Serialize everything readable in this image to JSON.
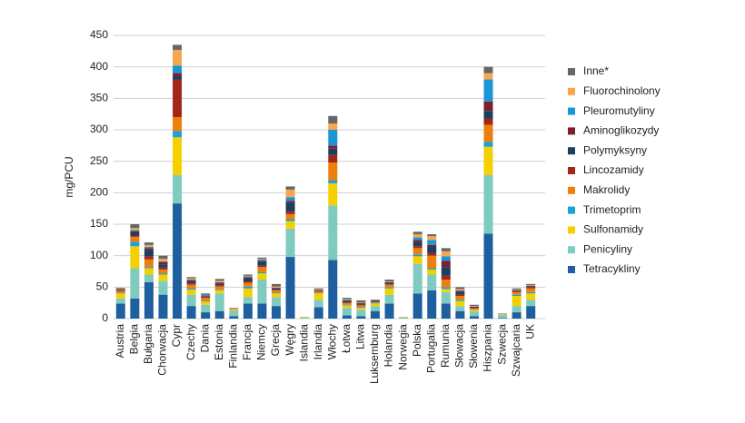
{
  "chart_data": {
    "type": "stacked_bar",
    "y_label": "mg/PCU",
    "categories": [
      "Austria",
      "Belgia",
      "Bułgaria",
      "Chorwacja",
      "Cypr",
      "Czechy",
      "Dania",
      "Estonia",
      "Finlandia",
      "Francja",
      "Niemcy",
      "Grecja",
      "Węgry",
      "Islandia",
      "Irlandia",
      "Włochy",
      "Łotwa",
      "Litwa",
      "Luksemburg",
      "Holandia",
      "Norwegia",
      "Polska",
      "Portugalia",
      "Rumunia",
      "Słowacja",
      "Słowenia",
      "Hiszpania",
      "Szwecja",
      "Szwajcaria",
      "UK"
    ],
    "series": [
      {
        "name": "Tetracykliny",
        "color": "#1f5f9f",
        "values": [
          24,
          32,
          58,
          38,
          183,
          20,
          10,
          12,
          4,
          24,
          24,
          20,
          98,
          0,
          18,
          93,
          5,
          4,
          12,
          24,
          0,
          40,
          45,
          24,
          12,
          4,
          135,
          1,
          10,
          20
        ]
      },
      {
        "name": "Penicyliny",
        "color": "#7fcbbf",
        "values": [
          8,
          48,
          12,
          22,
          45,
          18,
          12,
          28,
          9,
          10,
          38,
          14,
          45,
          2,
          12,
          87,
          12,
          10,
          8,
          14,
          2,
          47,
          25,
          18,
          8,
          8,
          93,
          5,
          10,
          10
        ]
      },
      {
        "name": "Sulfonamidy",
        "color": "#f5d000",
        "values": [
          8,
          35,
          10,
          10,
          60,
          8,
          5,
          5,
          2,
          14,
          10,
          6,
          12,
          1,
          10,
          35,
          4,
          3,
          4,
          10,
          1,
          12,
          8,
          5,
          8,
          2,
          45,
          1,
          16,
          10
        ]
      },
      {
        "name": "Trimetoprim",
        "color": "#1ba0d8",
        "values": [
          1,
          7,
          2,
          2,
          10,
          2,
          1,
          1,
          0,
          3,
          2,
          1,
          3,
          0,
          1,
          5,
          1,
          1,
          1,
          2,
          0,
          3,
          2,
          3,
          2,
          0,
          8,
          0,
          2,
          2
        ]
      },
      {
        "name": "Makrolidy",
        "color": "#ef7f0b",
        "values": [
          3,
          8,
          12,
          6,
          22,
          6,
          5,
          5,
          1,
          6,
          8,
          4,
          8,
          0,
          2,
          28,
          3,
          3,
          1,
          4,
          0,
          10,
          20,
          12,
          6,
          2,
          27,
          0,
          4,
          6
        ]
      },
      {
        "name": "Lincozamidy",
        "color": "#a3261b",
        "values": [
          1,
          2,
          5,
          3,
          60,
          2,
          2,
          2,
          0,
          2,
          2,
          1,
          4,
          0,
          1,
          12,
          1,
          1,
          0,
          1,
          0,
          3,
          4,
          6,
          2,
          1,
          10,
          0,
          1,
          2
        ]
      },
      {
        "name": "Polymyksyny",
        "color": "#1c3f5e",
        "values": [
          1,
          5,
          10,
          5,
          5,
          3,
          0,
          2,
          0,
          5,
          6,
          2,
          14,
          0,
          0,
          10,
          2,
          2,
          1,
          2,
          0,
          7,
          10,
          14,
          4,
          1,
          12,
          0,
          1,
          1
        ]
      },
      {
        "name": "Aminoglikozydy",
        "color": "#7b1f31",
        "values": [
          1,
          2,
          3,
          4,
          5,
          2,
          1,
          2,
          0,
          2,
          2,
          1,
          3,
          0,
          1,
          5,
          1,
          1,
          1,
          1,
          0,
          3,
          3,
          10,
          2,
          1,
          15,
          0,
          1,
          1
        ]
      },
      {
        "name": "Pleuromutyliny",
        "color": "#1996d3",
        "values": [
          0,
          2,
          2,
          1,
          12,
          1,
          2,
          1,
          0,
          1,
          2,
          0,
          6,
          0,
          0,
          25,
          1,
          0,
          0,
          0,
          0,
          4,
          8,
          7,
          1,
          0,
          35,
          0,
          0,
          0
        ]
      },
      {
        "name": "Fluorochinolony",
        "color": "#f6a74d",
        "values": [
          1,
          3,
          3,
          4,
          25,
          2,
          0,
          2,
          0,
          1,
          1,
          2,
          12,
          0,
          1,
          10,
          1,
          1,
          0,
          1,
          0,
          5,
          6,
          8,
          2,
          1,
          10,
          0,
          1,
          1
        ]
      },
      {
        "name": "Inne*",
        "color": "#666666",
        "values": [
          1,
          6,
          4,
          5,
          8,
          2,
          2,
          3,
          1,
          2,
          2,
          4,
          5,
          0,
          2,
          12,
          2,
          3,
          2,
          3,
          0,
          4,
          3,
          5,
          3,
          2,
          10,
          1,
          2,
          2
        ]
      }
    ],
    "ylim": [
      0,
      450
    ],
    "yticks": [
      0,
      50,
      100,
      150,
      200,
      250,
      300,
      350,
      400,
      450
    ],
    "grid": true,
    "legend": "right"
  }
}
